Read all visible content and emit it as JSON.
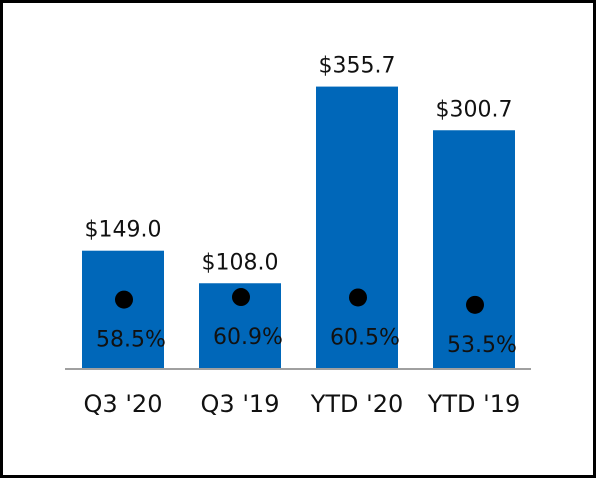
{
  "chart_data": {
    "type": "bar",
    "categories": [
      "Q3 '20",
      "Q3 '19",
      "YTD '20",
      "YTD '19"
    ],
    "series": [
      {
        "values": [
          149.0,
          108.0,
          355.7,
          300.7
        ],
        "labels": [
          "$149.0",
          "$108.0",
          "$355.7",
          "$300.7"
        ]
      },
      {
        "type": "scatter",
        "values": [
          58.5,
          60.9,
          60.5,
          53.5
        ],
        "labels": [
          "58.5%",
          "60.9%",
          "60.5%",
          "53.5%"
        ]
      }
    ],
    "title": "",
    "xlabel": "",
    "ylabel": "",
    "ylim": [
      0,
      380
    ],
    "percent_ylim": [
      0,
      100
    ],
    "grid": false,
    "legend": "none",
    "colors": {
      "bar": "#0067b9",
      "marker": "#000000",
      "axis": "#a0a0a0"
    }
  }
}
